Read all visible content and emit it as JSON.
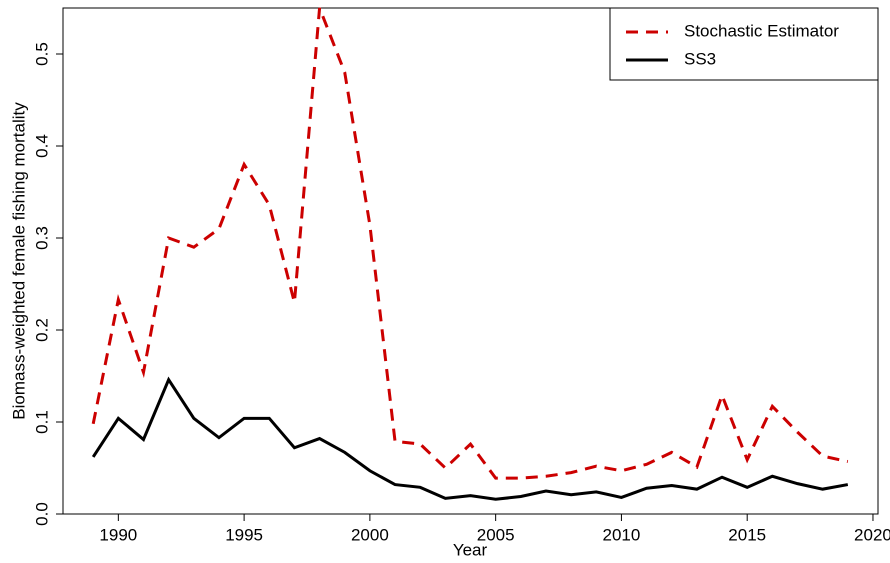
{
  "chart_data": {
    "type": "line",
    "x_label": "Year",
    "y_label": "Biomass-weighted female fishing mortality",
    "x": [
      1989,
      1990,
      1991,
      1992,
      1993,
      1994,
      1995,
      1996,
      1997,
      1998,
      1999,
      2000,
      2001,
      2002,
      2003,
      2004,
      2005,
      2006,
      2007,
      2008,
      2009,
      2010,
      2011,
      2012,
      2013,
      2014,
      2015,
      2016,
      2017,
      2018,
      2019
    ],
    "series": [
      {
        "name": "Stochastic Estimator",
        "color": "#cc0000",
        "dash": true,
        "values": [
          0.098,
          0.233,
          0.154,
          0.3,
          0.29,
          0.31,
          0.38,
          0.336,
          0.23,
          0.55,
          0.48,
          0.314,
          0.079,
          0.076,
          0.05,
          0.076,
          0.039,
          0.039,
          0.041,
          0.045,
          0.052,
          0.047,
          0.054,
          0.067,
          0.051,
          0.129,
          0.059,
          0.117,
          0.089,
          0.063,
          0.057
        ]
      },
      {
        "name": "SS3",
        "color": "#000000",
        "dash": false,
        "values": [
          0.062,
          0.104,
          0.081,
          0.146,
          0.104,
          0.083,
          0.104,
          0.104,
          0.072,
          0.082,
          0.067,
          0.047,
          0.032,
          0.029,
          0.017,
          0.02,
          0.016,
          0.019,
          0.025,
          0.021,
          0.024,
          0.018,
          0.028,
          0.031,
          0.027,
          0.04,
          0.029,
          0.041,
          0.033,
          0.027,
          0.032
        ]
      }
    ],
    "xlim": [
      1987.8,
      2020.2
    ],
    "xticks": [
      1990,
      1995,
      2000,
      2005,
      2010,
      2015,
      2020
    ],
    "ylim": [
      0,
      0.55
    ],
    "yticks": [
      {
        "value": 0,
        "label": "0.0"
      },
      0.1,
      0.2,
      0.3,
      0.4,
      0.5
    ],
    "legend": "top-right"
  }
}
